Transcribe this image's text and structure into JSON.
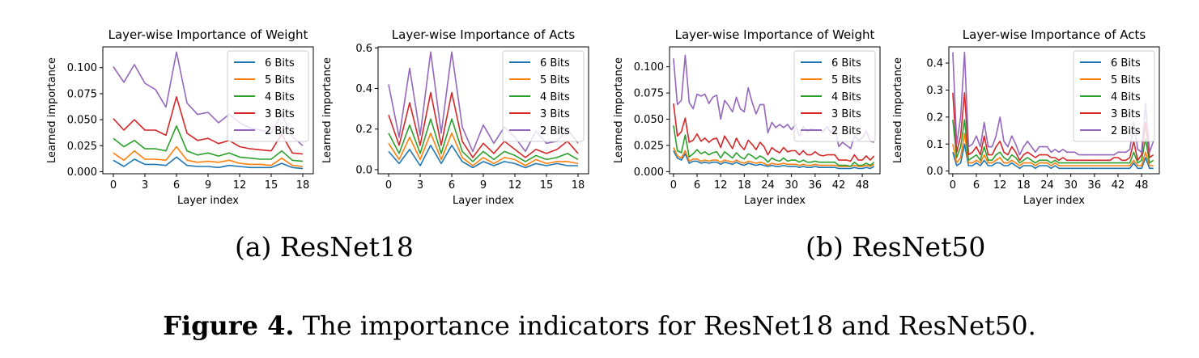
{
  "chart_data": [
    {
      "type": "line",
      "title": "Layer-wise Importance of Weight",
      "xlabel": "Layer index",
      "ylabel": "Learned importance",
      "xlim": [
        -1,
        19
      ],
      "ylim": [
        -0.002,
        0.12
      ],
      "xticks": [
        0,
        3,
        6,
        9,
        12,
        15,
        18
      ],
      "yticks": [
        0.0,
        0.025,
        0.05,
        0.075,
        0.1
      ],
      "ytick_labels": [
        "0.000",
        "0.025",
        "0.050",
        "0.075",
        "0.100"
      ],
      "legend": "top-right",
      "x": [
        0,
        1,
        2,
        3,
        4,
        5,
        6,
        7,
        8,
        9,
        10,
        11,
        12,
        13,
        14,
        15,
        16,
        17,
        18
      ],
      "series": [
        {
          "name": "6 Bits",
          "color": "#1f77b4",
          "values": [
            0.011,
            0.005,
            0.012,
            0.007,
            0.007,
            0.006,
            0.014,
            0.006,
            0.005,
            0.005,
            0.004,
            0.006,
            0.005,
            0.004,
            0.004,
            0.004,
            0.008,
            0.004,
            0.003
          ]
        },
        {
          "name": "5 Bits",
          "color": "#ff7f0e",
          "values": [
            0.018,
            0.011,
            0.02,
            0.012,
            0.012,
            0.011,
            0.024,
            0.011,
            0.009,
            0.01,
            0.009,
            0.011,
            0.008,
            0.007,
            0.007,
            0.006,
            0.013,
            0.006,
            0.005
          ]
        },
        {
          "name": "4 Bits",
          "color": "#2ca02c",
          "values": [
            0.032,
            0.024,
            0.03,
            0.022,
            0.022,
            0.02,
            0.044,
            0.02,
            0.016,
            0.018,
            0.015,
            0.018,
            0.014,
            0.013,
            0.012,
            0.012,
            0.02,
            0.011,
            0.01
          ]
        },
        {
          "name": "3 Bits",
          "color": "#d62728",
          "values": [
            0.051,
            0.04,
            0.05,
            0.04,
            0.04,
            0.035,
            0.072,
            0.037,
            0.03,
            0.032,
            0.027,
            0.03,
            0.024,
            0.022,
            0.021,
            0.02,
            0.036,
            0.018,
            0.017
          ]
        },
        {
          "name": "2 Bits",
          "color": "#9467bd",
          "values": [
            0.101,
            0.086,
            0.103,
            0.085,
            0.079,
            0.062,
            0.115,
            0.066,
            0.055,
            0.057,
            0.047,
            0.055,
            0.047,
            0.042,
            0.04,
            0.037,
            0.055,
            0.034,
            0.025
          ]
        }
      ]
    },
    {
      "type": "line",
      "title": "Layer-wise Importance of Acts",
      "xlabel": "Layer index",
      "ylabel": "Learned importance",
      "xlim": [
        -1,
        19
      ],
      "ylim": [
        -0.02,
        0.605
      ],
      "xticks": [
        0,
        3,
        6,
        9,
        12,
        15,
        18
      ],
      "yticks": [
        0.0,
        0.2,
        0.4,
        0.6
      ],
      "ytick_labels": [
        "0.0",
        "0.2",
        "0.4",
        "0.6"
      ],
      "legend": "top-right",
      "x": [
        0,
        1,
        2,
        3,
        4,
        5,
        6,
        7,
        8,
        9,
        10,
        11,
        12,
        13,
        14,
        15,
        16,
        17,
        18
      ],
      "series": [
        {
          "name": "6 Bits",
          "color": "#1f77b4",
          "values": [
            0.09,
            0.03,
            0.1,
            0.02,
            0.12,
            0.03,
            0.12,
            0.04,
            0.01,
            0.04,
            0.02,
            0.04,
            0.03,
            0.01,
            0.03,
            0.02,
            0.03,
            0.02,
            0.02
          ]
        },
        {
          "name": "5 Bits",
          "color": "#ff7f0e",
          "values": [
            0.13,
            0.05,
            0.16,
            0.05,
            0.18,
            0.05,
            0.18,
            0.06,
            0.02,
            0.06,
            0.03,
            0.06,
            0.05,
            0.02,
            0.05,
            0.03,
            0.04,
            0.04,
            0.03
          ]
        },
        {
          "name": "4 Bits",
          "color": "#2ca02c",
          "values": [
            0.18,
            0.08,
            0.22,
            0.08,
            0.25,
            0.08,
            0.25,
            0.09,
            0.04,
            0.09,
            0.05,
            0.09,
            0.07,
            0.04,
            0.07,
            0.05,
            0.06,
            0.08,
            0.05
          ]
        },
        {
          "name": "3 Bits",
          "color": "#d62728",
          "values": [
            0.27,
            0.12,
            0.33,
            0.12,
            0.38,
            0.12,
            0.38,
            0.14,
            0.06,
            0.13,
            0.08,
            0.14,
            0.1,
            0.06,
            0.1,
            0.08,
            0.1,
            0.14,
            0.08
          ]
        },
        {
          "name": "2 Bits",
          "color": "#9467bd",
          "values": [
            0.42,
            0.16,
            0.5,
            0.17,
            0.58,
            0.18,
            0.58,
            0.21,
            0.09,
            0.22,
            0.13,
            0.21,
            0.16,
            0.09,
            0.19,
            0.13,
            0.14,
            0.2,
            0.13
          ]
        }
      ]
    },
    {
      "type": "line",
      "title": "Layer-wise Importance of Weight",
      "xlabel": "Layer index",
      "ylabel": "Learned importance",
      "xlim": [
        -1,
        52.5
      ],
      "ylim": [
        -0.002,
        0.119
      ],
      "xticks": [
        0,
        6,
        12,
        18,
        24,
        30,
        36,
        42,
        48
      ],
      "yticks": [
        0.0,
        0.025,
        0.05,
        0.075,
        0.1
      ],
      "ytick_labels": [
        "0.000",
        "0.025",
        "0.050",
        "0.075",
        "0.100"
      ],
      "legend": "top-right",
      "x": [
        0,
        1,
        2,
        3,
        4,
        5,
        6,
        7,
        8,
        9,
        10,
        11,
        12,
        13,
        14,
        15,
        16,
        17,
        18,
        19,
        20,
        21,
        22,
        23,
        24,
        25,
        26,
        27,
        28,
        29,
        30,
        31,
        32,
        33,
        34,
        35,
        36,
        37,
        38,
        39,
        40,
        41,
        42,
        43,
        44,
        45,
        46,
        47,
        48,
        49,
        50,
        51
      ],
      "series": [
        {
          "name": "6 Bits",
          "color": "#1f77b4",
          "values": [
            0.02,
            0.013,
            0.011,
            0.017,
            0.008,
            0.01,
            0.01,
            0.008,
            0.009,
            0.008,
            0.009,
            0.009,
            0.007,
            0.009,
            0.008,
            0.007,
            0.009,
            0.007,
            0.006,
            0.008,
            0.007,
            0.006,
            0.007,
            0.006,
            0.005,
            0.006,
            0.005,
            0.005,
            0.006,
            0.005,
            0.005,
            0.005,
            0.004,
            0.005,
            0.004,
            0.004,
            0.005,
            0.004,
            0.004,
            0.004,
            0.004,
            0.004,
            0.003,
            0.003,
            0.003,
            0.003,
            0.004,
            0.003,
            0.003,
            0.004,
            0.003,
            0.005
          ]
        },
        {
          "name": "5 Bits",
          "color": "#ff7f0e",
          "values": [
            0.023,
            0.015,
            0.013,
            0.02,
            0.01,
            0.012,
            0.012,
            0.01,
            0.011,
            0.01,
            0.011,
            0.011,
            0.009,
            0.011,
            0.01,
            0.009,
            0.011,
            0.009,
            0.008,
            0.01,
            0.009,
            0.008,
            0.009,
            0.008,
            0.006,
            0.008,
            0.007,
            0.007,
            0.008,
            0.007,
            0.007,
            0.007,
            0.006,
            0.007,
            0.006,
            0.006,
            0.007,
            0.006,
            0.006,
            0.006,
            0.006,
            0.006,
            0.005,
            0.005,
            0.005,
            0.005,
            0.006,
            0.005,
            0.005,
            0.006,
            0.005,
            0.007
          ]
        },
        {
          "name": "4 Bits",
          "color": "#2ca02c",
          "values": [
            0.044,
            0.02,
            0.018,
            0.035,
            0.014,
            0.017,
            0.021,
            0.017,
            0.019,
            0.016,
            0.018,
            0.019,
            0.013,
            0.019,
            0.016,
            0.013,
            0.018,
            0.014,
            0.012,
            0.017,
            0.015,
            0.012,
            0.015,
            0.013,
            0.009,
            0.013,
            0.011,
            0.01,
            0.013,
            0.01,
            0.011,
            0.011,
            0.009,
            0.011,
            0.009,
            0.009,
            0.01,
            0.009,
            0.009,
            0.009,
            0.009,
            0.009,
            0.006,
            0.006,
            0.006,
            0.005,
            0.009,
            0.006,
            0.006,
            0.008,
            0.006,
            0.009
          ]
        },
        {
          "name": "3 Bits",
          "color": "#d62728",
          "values": [
            0.065,
            0.034,
            0.038,
            0.051,
            0.028,
            0.03,
            0.036,
            0.029,
            0.032,
            0.028,
            0.031,
            0.032,
            0.023,
            0.034,
            0.028,
            0.022,
            0.032,
            0.025,
            0.021,
            0.03,
            0.026,
            0.021,
            0.028,
            0.024,
            0.016,
            0.023,
            0.02,
            0.018,
            0.023,
            0.019,
            0.02,
            0.02,
            0.016,
            0.02,
            0.016,
            0.016,
            0.019,
            0.016,
            0.015,
            0.016,
            0.016,
            0.016,
            0.011,
            0.011,
            0.011,
            0.01,
            0.016,
            0.011,
            0.011,
            0.015,
            0.011,
            0.015
          ]
        },
        {
          "name": "2 Bits",
          "color": "#9467bd",
          "values": [
            0.108,
            0.064,
            0.068,
            0.111,
            0.066,
            0.06,
            0.074,
            0.072,
            0.074,
            0.065,
            0.071,
            0.073,
            0.05,
            0.068,
            0.063,
            0.057,
            0.071,
            0.06,
            0.057,
            0.08,
            0.066,
            0.055,
            0.064,
            0.064,
            0.037,
            0.047,
            0.042,
            0.045,
            0.042,
            0.045,
            0.04,
            0.045,
            0.034,
            0.043,
            0.038,
            0.041,
            0.039,
            0.04,
            0.038,
            0.043,
            0.037,
            0.043,
            0.024,
            0.028,
            0.025,
            0.022,
            0.034,
            0.03,
            0.032,
            0.039,
            0.029,
            0.028
          ]
        }
      ]
    },
    {
      "type": "line",
      "title": "Layer-wise Importance of Acts",
      "xlabel": "Layer index",
      "ylabel": "Learned importance",
      "xlim": [
        -1,
        52.5
      ],
      "ylim": [
        -0.01,
        0.46
      ],
      "xticks": [
        0,
        6,
        12,
        18,
        24,
        30,
        36,
        42,
        48
      ],
      "yticks": [
        0.0,
        0.1,
        0.2,
        0.3,
        0.4
      ],
      "ytick_labels": [
        "0.0",
        "0.1",
        "0.2",
        "0.3",
        "0.4"
      ],
      "legend": "top-right",
      "x": [
        0,
        1,
        2,
        3,
        4,
        5,
        6,
        7,
        8,
        9,
        10,
        11,
        12,
        13,
        14,
        15,
        16,
        17,
        18,
        19,
        20,
        21,
        22,
        23,
        24,
        25,
        26,
        27,
        28,
        29,
        30,
        31,
        32,
        33,
        34,
        35,
        36,
        37,
        38,
        39,
        40,
        41,
        42,
        43,
        44,
        45,
        46,
        47,
        48,
        49,
        50,
        51
      ],
      "series": [
        {
          "name": "6 Bits",
          "color": "#1f77b4",
          "values": [
            0.07,
            0.02,
            0.03,
            0.1,
            0.02,
            0.02,
            0.03,
            0.02,
            0.04,
            0.02,
            0.02,
            0.03,
            0.03,
            0.02,
            0.02,
            0.03,
            0.02,
            0.01,
            0.02,
            0.02,
            0.02,
            0.01,
            0.02,
            0.02,
            0.02,
            0.01,
            0.02,
            0.01,
            0.01,
            0.01,
            0.01,
            0.01,
            0.01,
            0.01,
            0.01,
            0.01,
            0.01,
            0.01,
            0.01,
            0.01,
            0.01,
            0.01,
            0.01,
            0.01,
            0.01,
            0.01,
            0.03,
            0.01,
            0.01,
            0.05,
            0.01,
            0.01
          ]
        },
        {
          "name": "5 Bits",
          "color": "#ff7f0e",
          "values": [
            0.1,
            0.03,
            0.05,
            0.14,
            0.03,
            0.03,
            0.04,
            0.03,
            0.06,
            0.03,
            0.03,
            0.04,
            0.05,
            0.03,
            0.03,
            0.04,
            0.03,
            0.02,
            0.03,
            0.03,
            0.03,
            0.02,
            0.03,
            0.03,
            0.03,
            0.02,
            0.03,
            0.02,
            0.02,
            0.02,
            0.02,
            0.02,
            0.02,
            0.02,
            0.02,
            0.02,
            0.02,
            0.02,
            0.02,
            0.02,
            0.02,
            0.02,
            0.02,
            0.02,
            0.02,
            0.02,
            0.04,
            0.02,
            0.02,
            0.07,
            0.02,
            0.02
          ]
        },
        {
          "name": "4 Bits",
          "color": "#2ca02c",
          "values": [
            0.19,
            0.05,
            0.09,
            0.19,
            0.04,
            0.05,
            0.06,
            0.04,
            0.09,
            0.04,
            0.04,
            0.06,
            0.07,
            0.05,
            0.04,
            0.06,
            0.05,
            0.03,
            0.04,
            0.05,
            0.04,
            0.03,
            0.04,
            0.04,
            0.04,
            0.03,
            0.04,
            0.03,
            0.03,
            0.03,
            0.03,
            0.03,
            0.03,
            0.03,
            0.03,
            0.03,
            0.03,
            0.03,
            0.03,
            0.03,
            0.03,
            0.03,
            0.03,
            0.03,
            0.03,
            0.03,
            0.07,
            0.03,
            0.04,
            0.12,
            0.03,
            0.04
          ]
        },
        {
          "name": "3 Bits",
          "color": "#d62728",
          "values": [
            0.29,
            0.07,
            0.13,
            0.29,
            0.06,
            0.07,
            0.09,
            0.06,
            0.13,
            0.06,
            0.06,
            0.09,
            0.11,
            0.07,
            0.06,
            0.09,
            0.07,
            0.04,
            0.06,
            0.07,
            0.06,
            0.05,
            0.06,
            0.06,
            0.06,
            0.05,
            0.05,
            0.04,
            0.05,
            0.04,
            0.04,
            0.04,
            0.04,
            0.04,
            0.04,
            0.04,
            0.04,
            0.04,
            0.04,
            0.04,
            0.04,
            0.05,
            0.05,
            0.04,
            0.04,
            0.05,
            0.11,
            0.04,
            0.06,
            0.18,
            0.05,
            0.06
          ]
        },
        {
          "name": "2 Bits",
          "color": "#9467bd",
          "values": [
            0.44,
            0.1,
            0.2,
            0.44,
            0.09,
            0.1,
            0.13,
            0.09,
            0.18,
            0.09,
            0.09,
            0.13,
            0.2,
            0.11,
            0.09,
            0.13,
            0.1,
            0.06,
            0.09,
            0.11,
            0.09,
            0.07,
            0.09,
            0.09,
            0.09,
            0.07,
            0.08,
            0.07,
            0.08,
            0.07,
            0.07,
            0.07,
            0.06,
            0.06,
            0.06,
            0.06,
            0.06,
            0.06,
            0.06,
            0.06,
            0.06,
            0.06,
            0.07,
            0.07,
            0.07,
            0.08,
            0.18,
            0.08,
            0.07,
            0.25,
            0.07,
            0.11
          ]
        }
      ]
    }
  ],
  "subcaptions": {
    "a": "(a) ResNet18",
    "b": "(b) ResNet50"
  },
  "caption": {
    "label": "Figure 4.",
    "text": " The importance indicators for ResNet18 and ResNet50."
  }
}
